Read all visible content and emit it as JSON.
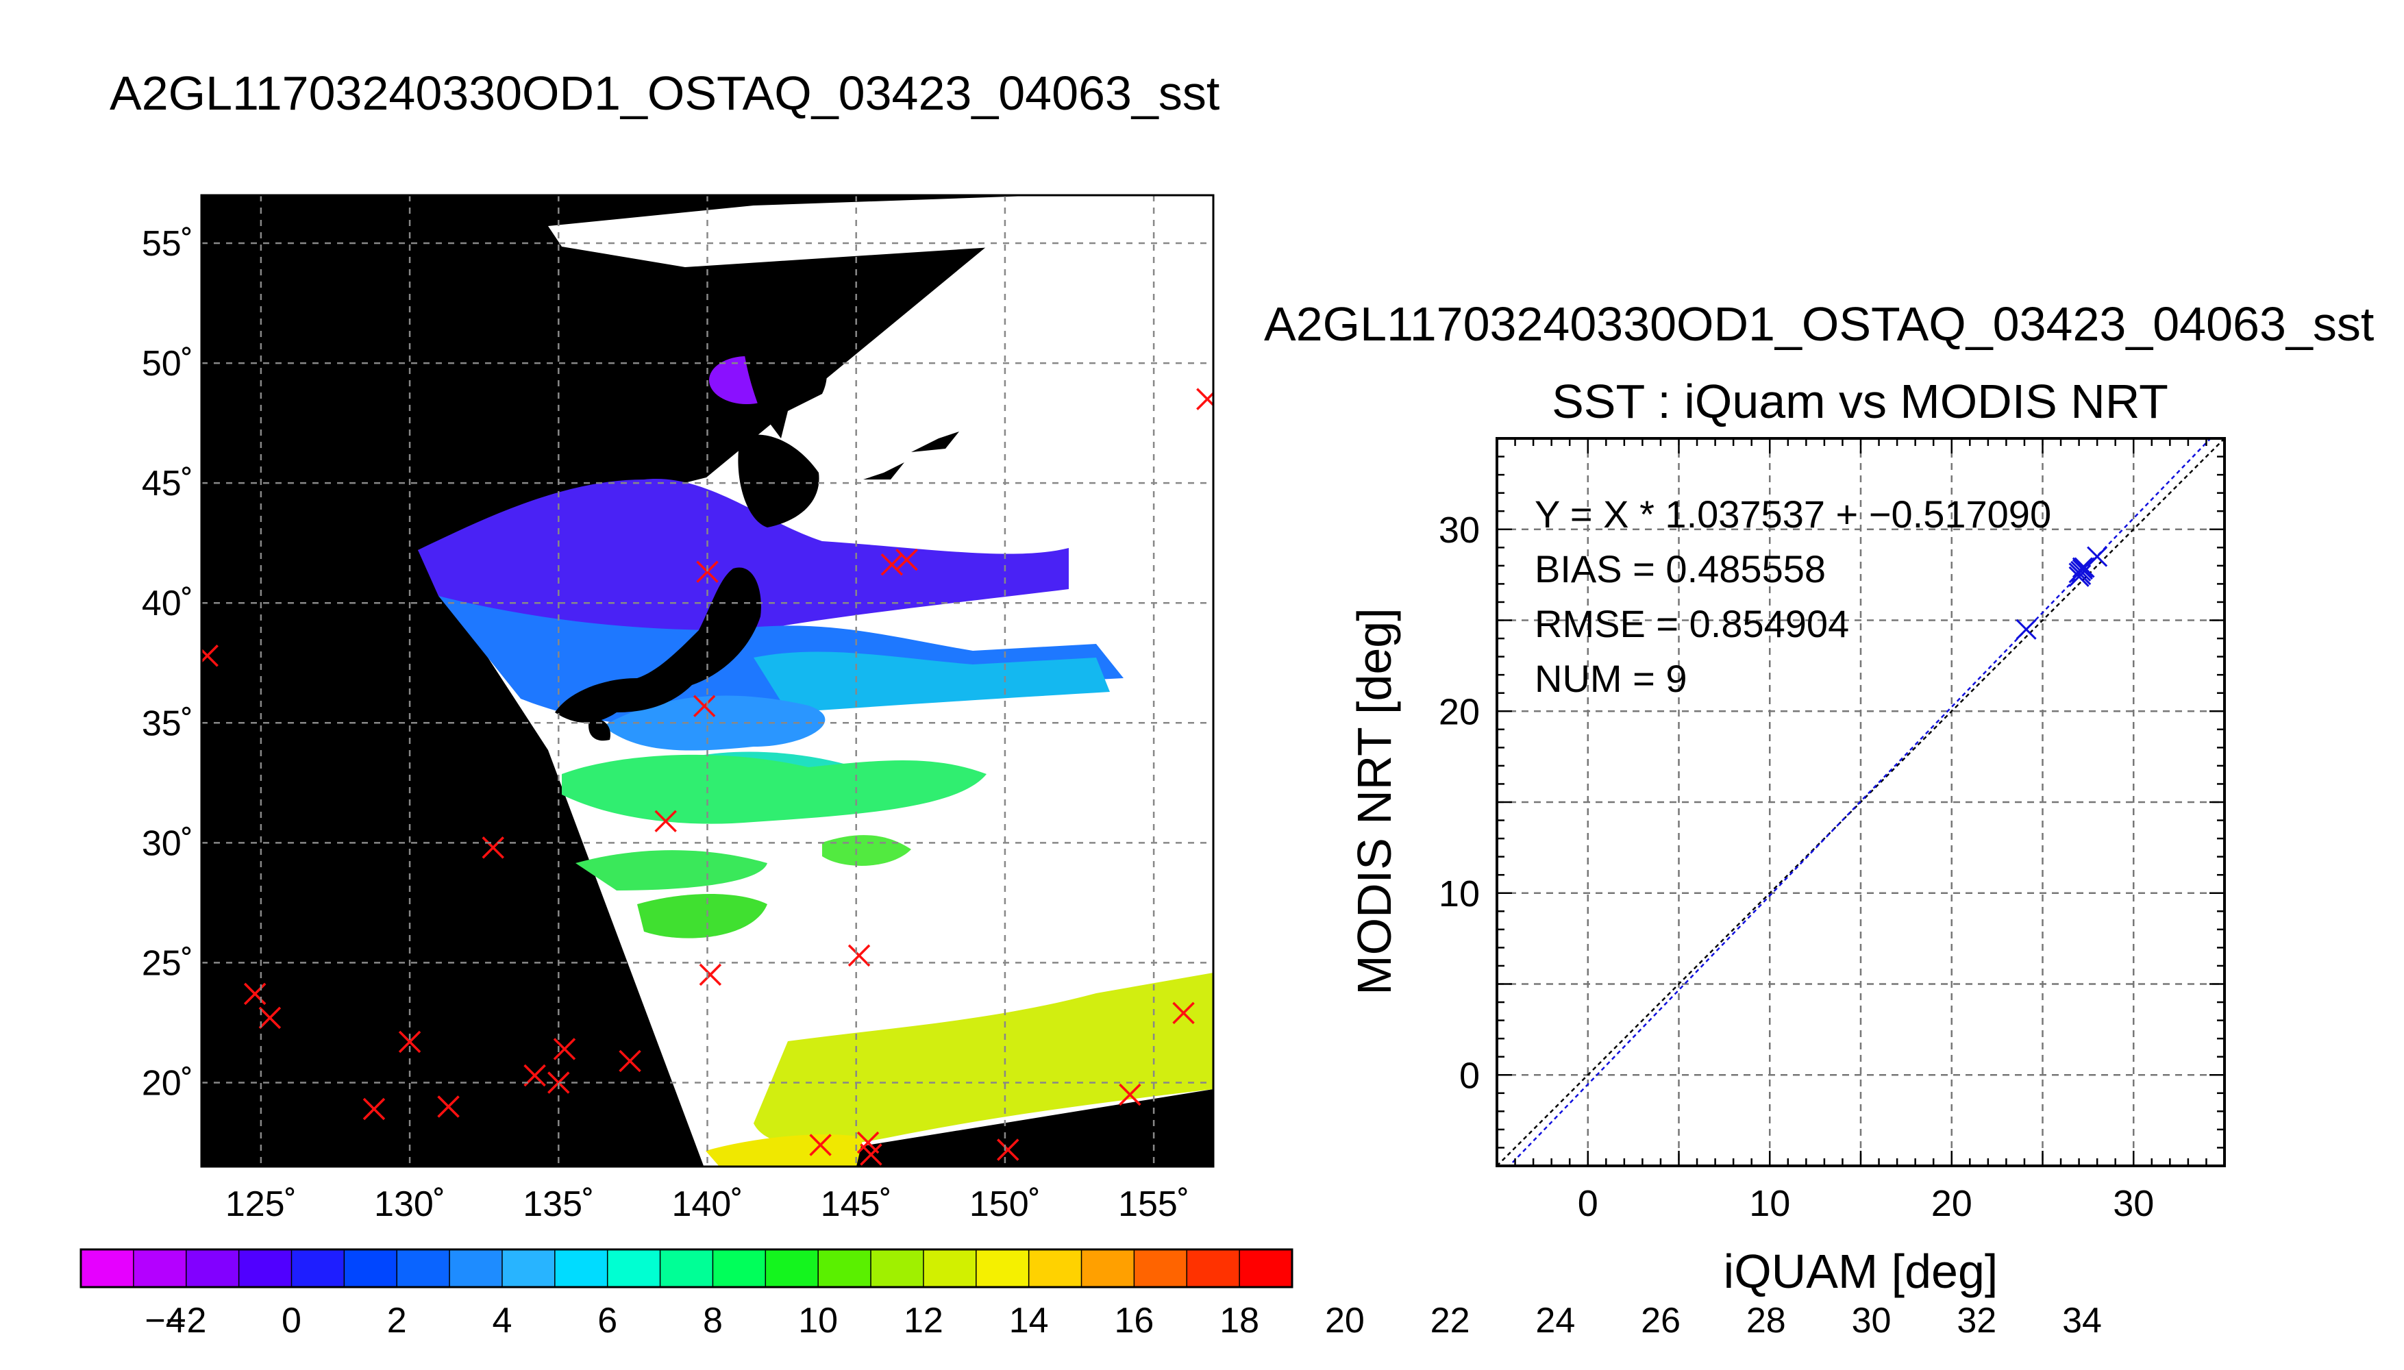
{
  "map_title": "A2GL11703240330OD1_OSTAQ_03423_04063_sst",
  "colorbar": {
    "tick_labels": [
      "−4",
      "−2",
      "0",
      "2",
      "4",
      "6",
      "8",
      "10",
      "12",
      "14",
      "16",
      "18",
      "20",
      "22",
      "24",
      "26",
      "28",
      "30",
      "32",
      "34"
    ],
    "colors": [
      "#e600ff",
      "#b400ff",
      "#8200ff",
      "#5000ff",
      "#1e1eff",
      "#0046ff",
      "#0a64ff",
      "#1e8cff",
      "#28b4ff",
      "#00dcff",
      "#00ffd2",
      "#00ff96",
      "#00ff5a",
      "#14f51e",
      "#5af000",
      "#a0f000",
      "#d2f000",
      "#f5f000",
      "#ffd200",
      "#ffa000",
      "#ff6400",
      "#ff3200",
      "#ff0000"
    ]
  },
  "chart_data": [
    {
      "type": "map",
      "lat_labels": [
        "55˚",
        "50˚",
        "45˚",
        "40˚",
        "35˚",
        "30˚",
        "25˚",
        "20˚"
      ],
      "lat_values": [
        55,
        50,
        45,
        40,
        35,
        30,
        25,
        20
      ],
      "lon_labels": [
        "125˚",
        "130˚",
        "135˚",
        "140˚",
        "145˚",
        "150˚",
        "155˚"
      ],
      "lon_values": [
        125,
        130,
        135,
        140,
        145,
        150,
        155
      ],
      "lon_range": [
        123,
        157
      ],
      "lat_range": [
        16.5,
        57
      ],
      "grid": true,
      "validation_points": [
        {
          "lon": 123.2,
          "lat": 37.8
        },
        {
          "lon": 124.8,
          "lat": 23.7
        },
        {
          "lon": 125.3,
          "lat": 22.7
        },
        {
          "lon": 128.8,
          "lat": 18.9
        },
        {
          "lon": 130.0,
          "lat": 21.7
        },
        {
          "lon": 131.3,
          "lat": 19.0
        },
        {
          "lon": 132.8,
          "lat": 29.8
        },
        {
          "lon": 134.2,
          "lat": 20.3
        },
        {
          "lon": 135.0,
          "lat": 20.0
        },
        {
          "lon": 135.2,
          "lat": 21.4
        },
        {
          "lon": 137.4,
          "lat": 20.9
        },
        {
          "lon": 138.6,
          "lat": 30.9
        },
        {
          "lon": 140.1,
          "lat": 24.5
        },
        {
          "lon": 139.9,
          "lat": 35.7
        },
        {
          "lon": 140.0,
          "lat": 41.3
        },
        {
          "lon": 143.8,
          "lat": 17.4
        },
        {
          "lon": 145.1,
          "lat": 25.3
        },
        {
          "lon": 145.4,
          "lat": 17.5
        },
        {
          "lon": 145.5,
          "lat": 17.0
        },
        {
          "lon": 146.2,
          "lat": 41.6
        },
        {
          "lon": 146.7,
          "lat": 41.8
        },
        {
          "lon": 150.1,
          "lat": 17.2
        },
        {
          "lon": 154.2,
          "lat": 19.5
        },
        {
          "lon": 156.0,
          "lat": 22.9
        },
        {
          "lon": 156.8,
          "lat": 48.5
        }
      ]
    },
    {
      "type": "scatter",
      "title_line1": "A2GL11703240330OD1_OSTAQ_03423_04063_sst",
      "title_line2": "SST : iQuam vs MODIS NRT",
      "xlabel": "iQUAM [deg]",
      "ylabel": "MODIS NRT [deg]",
      "xlim": [
        -5,
        35
      ],
      "ylim": [
        -5,
        35
      ],
      "x_ticks": [
        0,
        10,
        20,
        30
      ],
      "y_ticks": [
        0,
        10,
        20,
        30
      ],
      "grid": true,
      "stats": [
        "Y = X * 1.037537 + −0.517090",
        "BIAS = 0.485558",
        "RMSE = 0.854904",
        "NUM = 9"
      ],
      "fit": {
        "slope": 1.037537,
        "intercept": -0.51709
      },
      "points": [
        {
          "x": 24.1,
          "y": 24.5
        },
        {
          "x": 27.0,
          "y": 27.4
        },
        {
          "x": 27.1,
          "y": 27.7
        },
        {
          "x": 27.2,
          "y": 27.8
        },
        {
          "x": 27.3,
          "y": 27.9
        },
        {
          "x": 27.0,
          "y": 27.6
        },
        {
          "x": 28.0,
          "y": 28.5
        },
        {
          "x": 27.1,
          "y": 27.5
        },
        {
          "x": 27.2,
          "y": 27.9
        }
      ]
    }
  ]
}
